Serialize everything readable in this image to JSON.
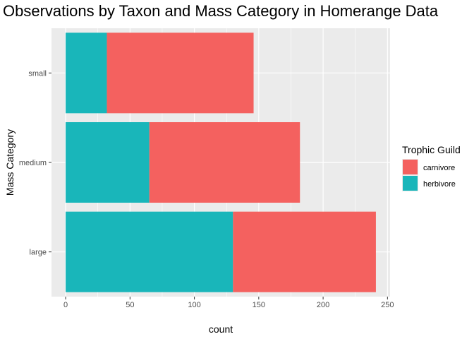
{
  "chart_data": {
    "type": "bar",
    "orientation": "horizontal",
    "stacked": true,
    "title": "Observations by Taxon and Mass Category in Homerange Data",
    "xlabel": "count",
    "ylabel": "Mass Category",
    "categories": [
      "small",
      "medium",
      "large"
    ],
    "series": [
      {
        "name": "herbivore",
        "color": "#19B6BA",
        "values": [
          32,
          65,
          130
        ]
      },
      {
        "name": "carnivore",
        "color": "#F4615F",
        "values": [
          114,
          117,
          111
        ]
      }
    ],
    "xlim": [
      -11,
      252
    ],
    "xticks": [
      0,
      50,
      100,
      150,
      200,
      250
    ],
    "grid": true,
    "legend": {
      "title": "Trophic Guild",
      "position": "right",
      "entries": [
        "carnivore",
        "herbivore"
      ]
    }
  }
}
